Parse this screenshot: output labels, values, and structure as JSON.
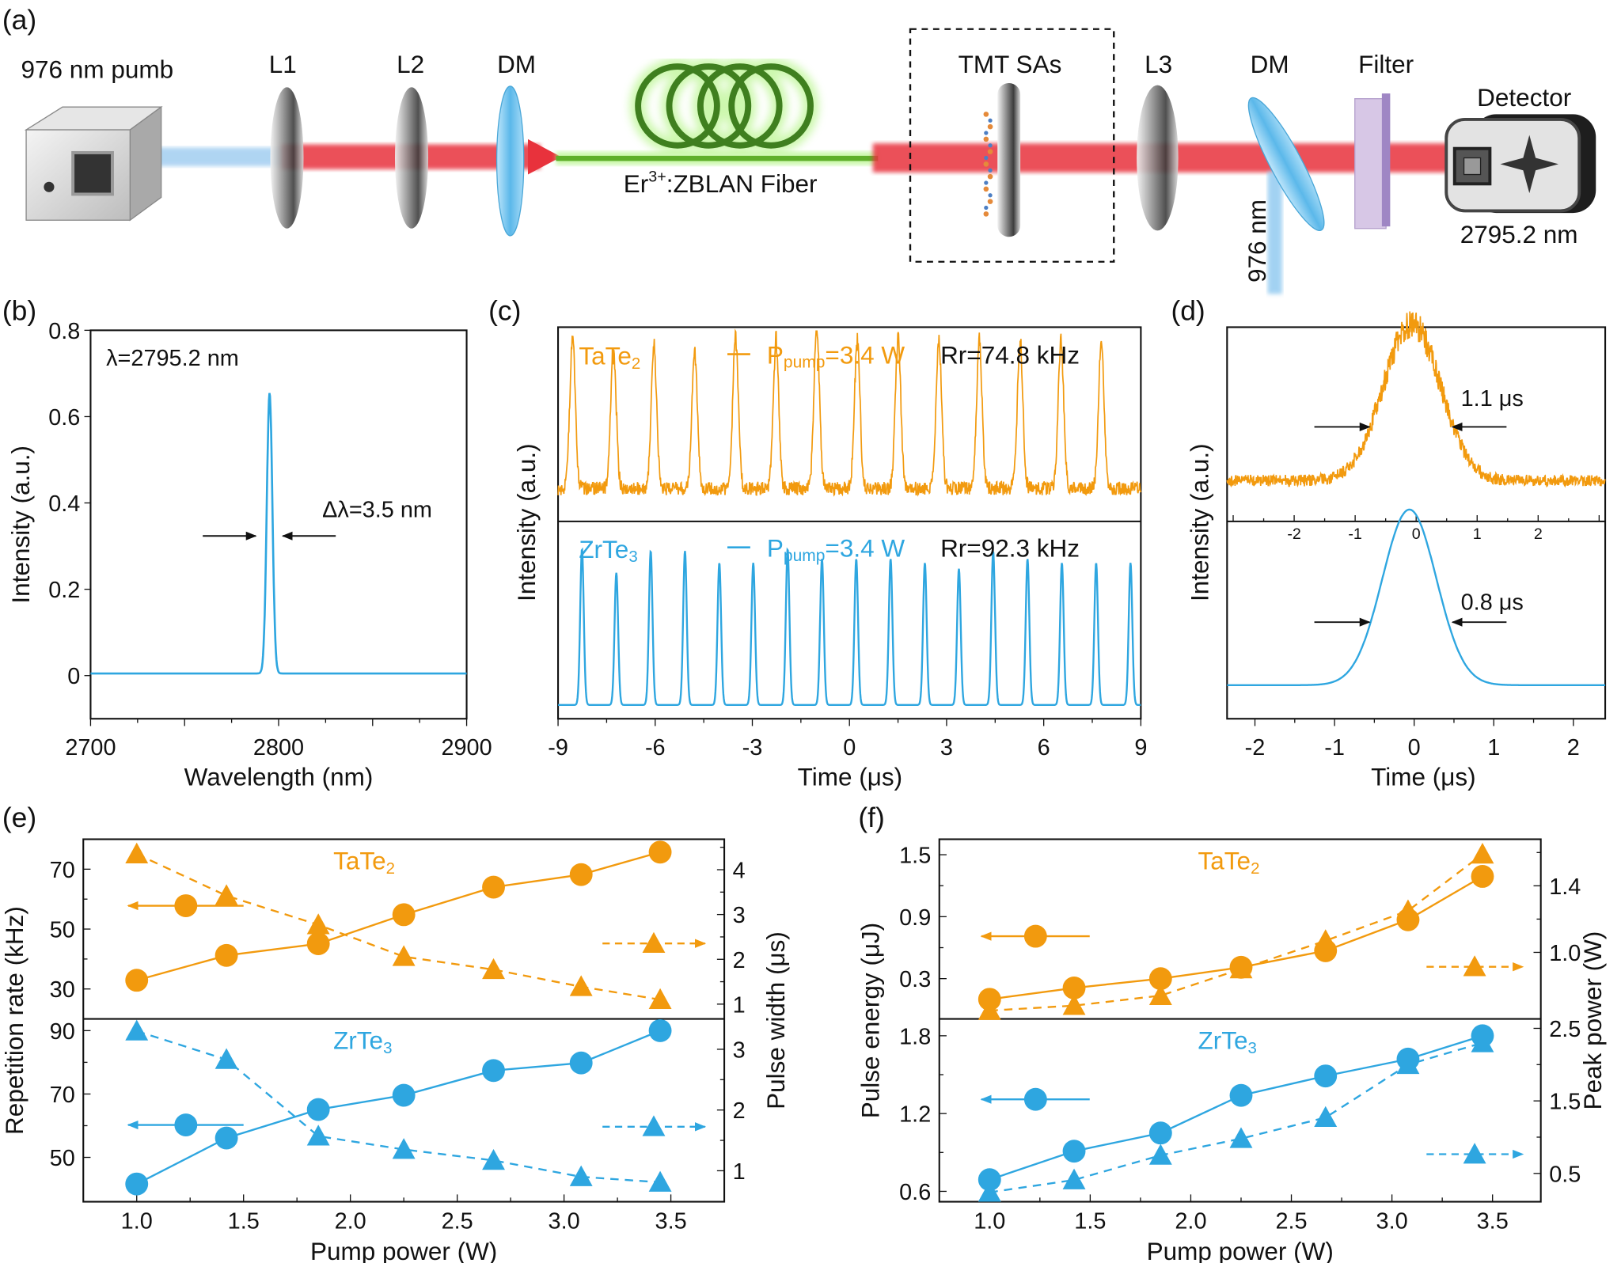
{
  "colors": {
    "tate2": "#F29A0E",
    "zrte3": "#2EA6E0",
    "beam_red": "#E8323C",
    "fiber_green": "#5FAF2A",
    "dm_blue": "#6EC3EE"
  },
  "setup": {
    "panel": "(a)",
    "pump": "976 nm pumb",
    "l1": "L1",
    "l2": "L2",
    "dm1": "DM",
    "fiber": "Er",
    "fiber_sup": "3+",
    "fiber_rest": ":ZBLAN Fiber",
    "sa": "TMT SAs",
    "l3": "L3",
    "dm2": "DM",
    "filter": "Filter",
    "detector": "Detector",
    "detector_wl": "2795.2 nm",
    "residual": "976 nm"
  },
  "chart_data": [
    {
      "panel": "(b)",
      "type": "line",
      "xlabel": "Wavelength (nm)",
      "ylabel": "Intensity (a.u.)",
      "xlim": [
        2700,
        2900
      ],
      "ylim": [
        -0.1,
        0.8
      ],
      "xticks": [
        2700,
        2800,
        2900
      ],
      "xtick_labels": [
        "2700",
        "2800",
        "2900"
      ],
      "yticks": [
        0,
        0.2,
        0.4,
        0.6,
        0.8
      ],
      "ytick_labels": [
        "0",
        "0.2",
        "0.4",
        "0.6",
        "0.8"
      ],
      "series": [
        {
          "center": 2795.2,
          "fwhm": 3.5,
          "peak": 0.65,
          "baseline": 0.005,
          "color": "#2EA6E0"
        }
      ],
      "annotations": [
        "λ=2795.2 nm",
        "Δλ=3.5 nm"
      ]
    },
    {
      "panel": "(c)",
      "type": "line",
      "xlabel": "Time (μs)",
      "ylabel": "Intensity (a.u.)",
      "xlim": [
        -9,
        9
      ],
      "xticks": [
        -9,
        -6,
        -3,
        0,
        3,
        6,
        9
      ],
      "xtick_labels": [
        "-9",
        "-6",
        "-3",
        "0",
        "3",
        "6",
        "9"
      ],
      "subplots": [
        {
          "label": "TaTe",
          "label_sub": "2",
          "legend_p": "P",
          "legend_p_sub": "pump",
          "legend_p_val": "=3.4 W",
          "legend_rr": "Rr=74.8 kHz",
          "color": "#F29A0E",
          "baseline": 0.17,
          "noise": 0.035,
          "pulse_fwhm": 0.2,
          "pulse_times": [
            -8.55,
            -7.29,
            -6.04,
            -4.78,
            -3.52,
            -2.27,
            -1.01,
            0.24,
            1.5,
            2.76,
            4.01,
            5.27,
            6.53,
            7.78
          ],
          "pulse_amplitudes": [
            0.76,
            0.72,
            0.72,
            0.71,
            0.79,
            0.76,
            0.84,
            0.77,
            0.77,
            0.76,
            0.75,
            0.75,
            0.76,
            0.75
          ]
        },
        {
          "label": "ZrTe",
          "label_sub": "3",
          "legend_p": "P",
          "legend_p_sub": "pump",
          "legend_p_val": "=3.4 W",
          "legend_rr": "Rr=92.3 kHz",
          "color": "#2EA6E0",
          "baseline": 0.07,
          "noise": 0,
          "pulse_fwhm": 0.13,
          "pulse_times": [
            -8.26,
            -7.2,
            -6.14,
            -5.08,
            -4.02,
            -2.97,
            -1.91,
            -0.85,
            0.21,
            1.27,
            2.33,
            3.38,
            4.44,
            5.5,
            6.56,
            7.62,
            8.68
          ],
          "pulse_amplitudes": [
            0.79,
            0.67,
            0.78,
            0.78,
            0.72,
            0.72,
            0.79,
            0.74,
            0.74,
            0.74,
            0.72,
            0.69,
            0.78,
            0.74,
            0.72,
            0.72,
            0.72
          ]
        }
      ]
    },
    {
      "panel": "(d)",
      "type": "line",
      "xlabel": "Time (μs)",
      "ylabel": "Intensity (a.u.)",
      "xlim": [
        -2.35,
        2.4
      ],
      "xticks": [
        -2,
        -1,
        0,
        1,
        2
      ],
      "xtick_labels": [
        "-2",
        "-1",
        "0",
        "1",
        "2"
      ],
      "subplots": [
        {
          "color": "#F29A0E",
          "center": -0.07,
          "fwhm": 1.1,
          "peak": 0.81,
          "baseline": 0.21,
          "noise": 0.03,
          "annotation": "1.1 μs",
          "xlim": [
            -3.1,
            3.1
          ],
          "xticks": [
            -2,
            -1,
            0,
            1,
            2
          ],
          "xtick_labels": [
            "-2",
            "-1",
            "0",
            "1",
            "2"
          ]
        },
        {
          "color": "#2EA6E0",
          "center": -0.06,
          "fwhm": 0.8,
          "peak": 0.89,
          "baseline": 0.17,
          "noise": 0,
          "annotation": "0.8 μs"
        }
      ]
    },
    {
      "panel": "(e)",
      "type": "scatter",
      "xlabel": "Pump power (W)",
      "ylabel_left": "Repetition rate (kHz)",
      "ylabel_right": "Pulse width (μs)",
      "xlim": [
        0.75,
        3.75
      ],
      "xticks": [
        1.0,
        1.5,
        2.0,
        2.5,
        3.0,
        3.5
      ],
      "xtick_labels": [
        "1.0",
        "1.5",
        "2.0",
        "2.5",
        "3.0",
        "3.5"
      ],
      "x": [
        1.0,
        1.42,
        1.85,
        2.25,
        2.67,
        3.08,
        3.45
      ],
      "subplots": [
        {
          "label": "TaTe",
          "label_sub": "2",
          "color": "#F29A0E",
          "left": {
            "ylim": [
              20,
              80
            ],
            "yticks": [
              30,
              50,
              70
            ],
            "ytick_labels": [
              "30",
              "50",
              "70"
            ],
            "values": [
              32.9,
              41.2,
              45.1,
              54.8,
              64.0,
              68.2,
              75.7
            ]
          },
          "right": {
            "ylim": [
              0.67,
              4.68
            ],
            "yticks": [
              1,
              2,
              3,
              4
            ],
            "ytick_labels": [
              "1",
              "2",
              "3",
              "4"
            ],
            "values": [
              4.35,
              3.42,
              2.77,
              2.06,
              1.77,
              1.39,
              1.1
            ]
          }
        },
        {
          "label": "ZrTe",
          "label_sub": "3",
          "color": "#2EA6E0",
          "left": {
            "ylim": [
              36,
              93.7
            ],
            "yticks": [
              50,
              70,
              90
            ],
            "ytick_labels": [
              "50",
              "70",
              "90"
            ],
            "values": [
              41.6,
              56.1,
              65.1,
              69.6,
              77.4,
              79.8,
              90.0
            ]
          },
          "right": {
            "ylim": [
              0.49,
              3.5
            ],
            "yticks": [
              1,
              2,
              3
            ],
            "ytick_labels": [
              "1",
              "2",
              "3"
            ],
            "values": [
              3.3,
              2.83,
              1.57,
              1.35,
              1.17,
              0.9,
              0.81
            ]
          }
        }
      ]
    },
    {
      "panel": "(f)",
      "type": "scatter",
      "xlabel": "Pump power (W)",
      "ylabel_left": "Pulse energy (μJ)",
      "ylabel_right": "Peak power (W)",
      "xlim": [
        0.75,
        3.74
      ],
      "xticks": [
        1.0,
        1.5,
        2.0,
        2.5,
        3.0,
        3.5
      ],
      "xtick_labels": [
        "1.0",
        "1.5",
        "2.0",
        "2.5",
        "3.0",
        "3.5"
      ],
      "x": [
        1.0,
        1.42,
        1.85,
        2.25,
        2.67,
        3.08,
        3.45
      ],
      "subplots": [
        {
          "label": "TaTe",
          "label_sub": "2",
          "color": "#F29A0E",
          "left": {
            "ylim": [
              -0.09,
              1.65
            ],
            "yticks": [
              0.3,
              0.9,
              1.5
            ],
            "ytick_labels": [
              "0.3",
              "0.9",
              "1.5"
            ],
            "values": [
              0.1,
              0.21,
              0.3,
              0.41,
              0.57,
              0.87,
              1.29
            ]
          },
          "right": {
            "ylim": [
              0.6,
              1.68
            ],
            "yticks": [
              1.0,
              1.4
            ],
            "ytick_labels": [
              "1.0",
              "1.4"
            ],
            "values": [
              0.65,
              0.68,
              0.74,
              0.9,
              1.07,
              1.25,
              1.59
            ]
          }
        },
        {
          "label": "ZrTe",
          "label_sub": "3",
          "color": "#2EA6E0",
          "left": {
            "ylim": [
              0.52,
              1.93
            ],
            "yticks": [
              0.6,
              1.2,
              1.8
            ],
            "ytick_labels": [
              "0.6",
              "1.2",
              "1.8"
            ],
            "values": [
              0.69,
              0.91,
              1.05,
              1.34,
              1.49,
              1.62,
              1.8
            ]
          },
          "right": {
            "ylim": [
              0.11,
              2.63
            ],
            "yticks": [
              0.5,
              1.5,
              2.5
            ],
            "ytick_labels": [
              "0.5",
              "1.5",
              "2.5"
            ],
            "values": [
              0.24,
              0.41,
              0.75,
              0.98,
              1.27,
              2.0,
              2.3
            ]
          }
        }
      ]
    }
  ]
}
